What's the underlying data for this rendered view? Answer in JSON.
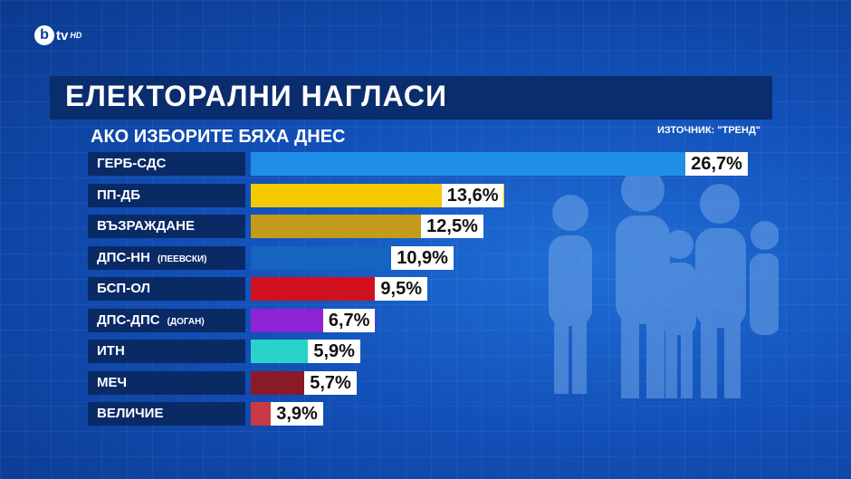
{
  "logo": {
    "letter": "b",
    "tv": "tv",
    "hd": "HD"
  },
  "title": "ЕЛЕКТОРАЛНИ НАГЛАСИ",
  "subtitle": "АКО ИЗБОРИТЕ БЯХА ДНЕС",
  "source": "ИЗТОЧНИК: \"ТРЕНД\"",
  "chart_data": {
    "type": "bar",
    "orientation": "horizontal",
    "title": "ЕЛЕКТОРАЛНИ НАГЛАСИ",
    "subtitle": "АКО ИЗБОРИТЕ БЯХА ДНЕС",
    "categories": [
      "ГЕРБ-СДС",
      "ПП-ДБ",
      "ВЪЗРАЖДАНЕ",
      "ДПС-НН",
      "БСП-ОЛ",
      "ДПС-ДПС",
      "ИТН",
      "МЕЧ",
      "ВЕЛИЧИЕ"
    ],
    "notes": [
      "",
      "",
      "",
      "(ПЕЕВСКИ)",
      "",
      "(ДОГАН)",
      "",
      "",
      ""
    ],
    "values": [
      26.7,
      13.6,
      12.5,
      10.9,
      9.5,
      6.7,
      5.9,
      5.7,
      3.9
    ],
    "value_labels": [
      "26,7%",
      "13,6%",
      "12,5%",
      "10,9%",
      "9,5%",
      "6,7%",
      "5,9%",
      "5,7%",
      "3,9%"
    ],
    "colors": [
      "#1e8fe6",
      "#f5c800",
      "#c49a1a",
      "#1565c0",
      "#d0101e",
      "#8e24d6",
      "#28d4c8",
      "#8a1a28",
      "#c83a44"
    ],
    "xlim": [
      0,
      28
    ],
    "grid": false
  }
}
